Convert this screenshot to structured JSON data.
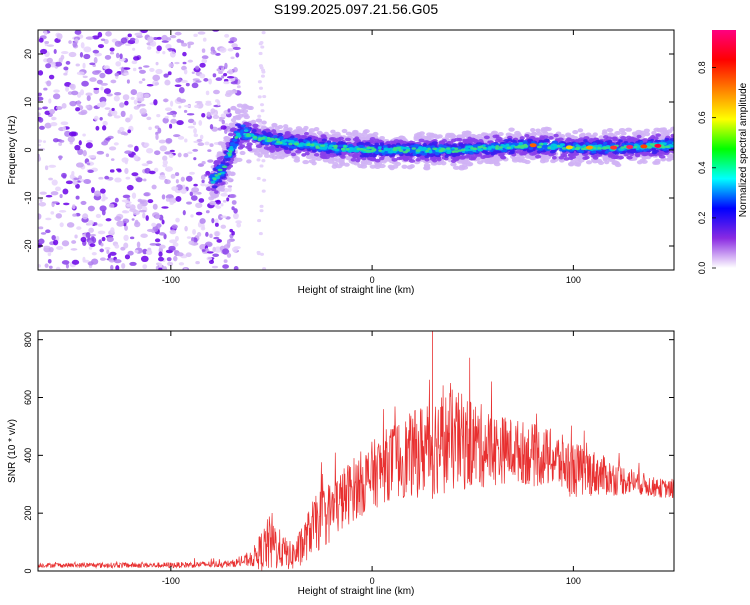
{
  "title": "S199.2025.097.21.56.G05",
  "colors": {
    "spectrum_series": "#6a00e8",
    "snr_line": "#e83030",
    "axis": "#000000"
  },
  "chart_data": [
    {
      "type": "heatmap",
      "xlabel": "Height of straight line (km)",
      "ylabel": "Frequency (Hz)",
      "xlim": [
        -166,
        150
      ],
      "ylim": [
        -25,
        25
      ],
      "x_ticks": [
        -100,
        0,
        100
      ],
      "y_ticks": [
        -20,
        -10,
        0,
        10,
        20
      ],
      "ridge_x": [
        -79,
        -74,
        -70,
        -67,
        -64,
        -60,
        -50,
        -40,
        -30,
        -20,
        0,
        20,
        40,
        60,
        80,
        100,
        120,
        150
      ],
      "ridge_y": [
        -6,
        -4,
        0,
        3,
        4,
        3,
        2,
        1.5,
        1,
        0.5,
        0,
        0,
        0,
        0.5,
        1,
        0.5,
        0.5,
        1
      ],
      "noise_region_x": [
        -166,
        -66
      ],
      "colorbar": {
        "label": "Normalized spectral amplitude",
        "range": [
          0,
          0.95
        ],
        "ticks": [
          0.0,
          0.2,
          0.4,
          0.6,
          0.8
        ],
        "tick_labels": [
          "0.0",
          "0.2",
          "0.4",
          "0.6",
          "0.8"
        ],
        "colormap": [
          "#ffffff",
          "#8a2be2",
          "#0000ff",
          "#00ffff",
          "#00ff00",
          "#ffff00",
          "#ff8000",
          "#ff0000",
          "#ff0080"
        ]
      }
    },
    {
      "type": "line",
      "xlabel": "Height of straight line (km)",
      "ylabel": "SNR (10 * v/v)",
      "xlim": [
        -166,
        150
      ],
      "ylim": [
        0,
        830
      ],
      "x_ticks": [
        -100,
        0,
        100
      ],
      "y_ticks": [
        0,
        200,
        400,
        600,
        800
      ],
      "envelope_x": [
        -166,
        -100,
        -70,
        -60,
        -55,
        -50,
        -45,
        -40,
        -35,
        -30,
        -25,
        -20,
        -10,
        0,
        10,
        20,
        30,
        40,
        50,
        60,
        70,
        80,
        90,
        100,
        110,
        120,
        130,
        140,
        150
      ],
      "envelope_mean": [
        20,
        20,
        25,
        40,
        70,
        100,
        70,
        50,
        80,
        150,
        180,
        210,
        280,
        330,
        380,
        400,
        440,
        450,
        440,
        420,
        420,
        400,
        390,
        350,
        340,
        320,
        310,
        290,
        280
      ],
      "envelope_spread": [
        8,
        10,
        12,
        25,
        70,
        110,
        60,
        50,
        70,
        90,
        110,
        110,
        110,
        120,
        130,
        150,
        180,
        180,
        160,
        130,
        110,
        110,
        100,
        100,
        80,
        60,
        45,
        35,
        30
      ],
      "peak_value": 830,
      "peak_x": 30
    }
  ]
}
